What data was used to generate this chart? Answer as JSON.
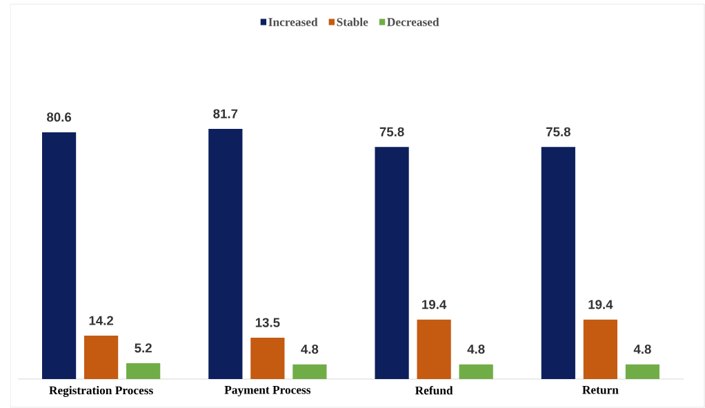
{
  "chart_data": {
    "type": "bar",
    "categories": [
      "Registration Process",
      "Payment Process",
      "Refund",
      "Return"
    ],
    "series": [
      {
        "name": "Increased",
        "color": "#0d1f5c",
        "values": [
          80.6,
          81.7,
          75.8,
          75.8
        ]
      },
      {
        "name": "Stable",
        "color": "#c55a11",
        "values": [
          14.2,
          13.5,
          19.4,
          19.4
        ]
      },
      {
        "name": "Decreased",
        "color": "#70ad47",
        "values": [
          5.2,
          4.8,
          4.8,
          4.8
        ]
      }
    ],
    "data_labels": true,
    "legend": "top"
  }
}
